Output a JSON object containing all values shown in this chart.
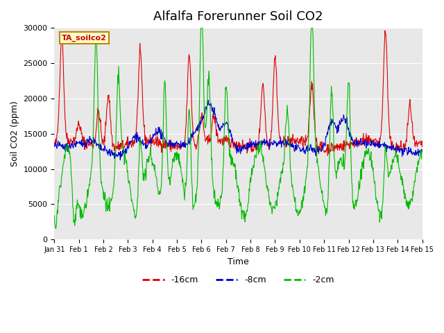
{
  "title": "Alfalfa Forerunner Soil CO2",
  "xlabel": "Time",
  "ylabel": "Soil CO2 (ppm)",
  "ylim": [
    0,
    30000
  ],
  "yticks": [
    0,
    5000,
    10000,
    15000,
    20000,
    25000,
    30000
  ],
  "xtick_positions": [
    0,
    1,
    2,
    3,
    4,
    5,
    6,
    7,
    8,
    9,
    10,
    11,
    12,
    13,
    14,
    15
  ],
  "xtick_labels": [
    "Jan 31",
    "Feb 1",
    "Feb 2",
    "Feb 3",
    "Feb 4",
    "Feb 5",
    "Feb 6",
    "Feb 7",
    "Feb 8",
    "Feb 9",
    "Feb 10",
    "Feb 11",
    "Feb 12",
    "Feb 13",
    "Feb 14",
    "Feb 15"
  ],
  "legend_label": "TA_soilco2",
  "line_labels": [
    "-16cm",
    "-8cm",
    "-2cm"
  ],
  "line_colors": [
    "#dd0000",
    "#0000cc",
    "#00bb00"
  ],
  "bg_color": "#e8e8e8",
  "fig_color": "#ffffff",
  "title_fontsize": 13,
  "axis_fontsize": 9,
  "tick_fontsize": 8,
  "n_points": 900
}
